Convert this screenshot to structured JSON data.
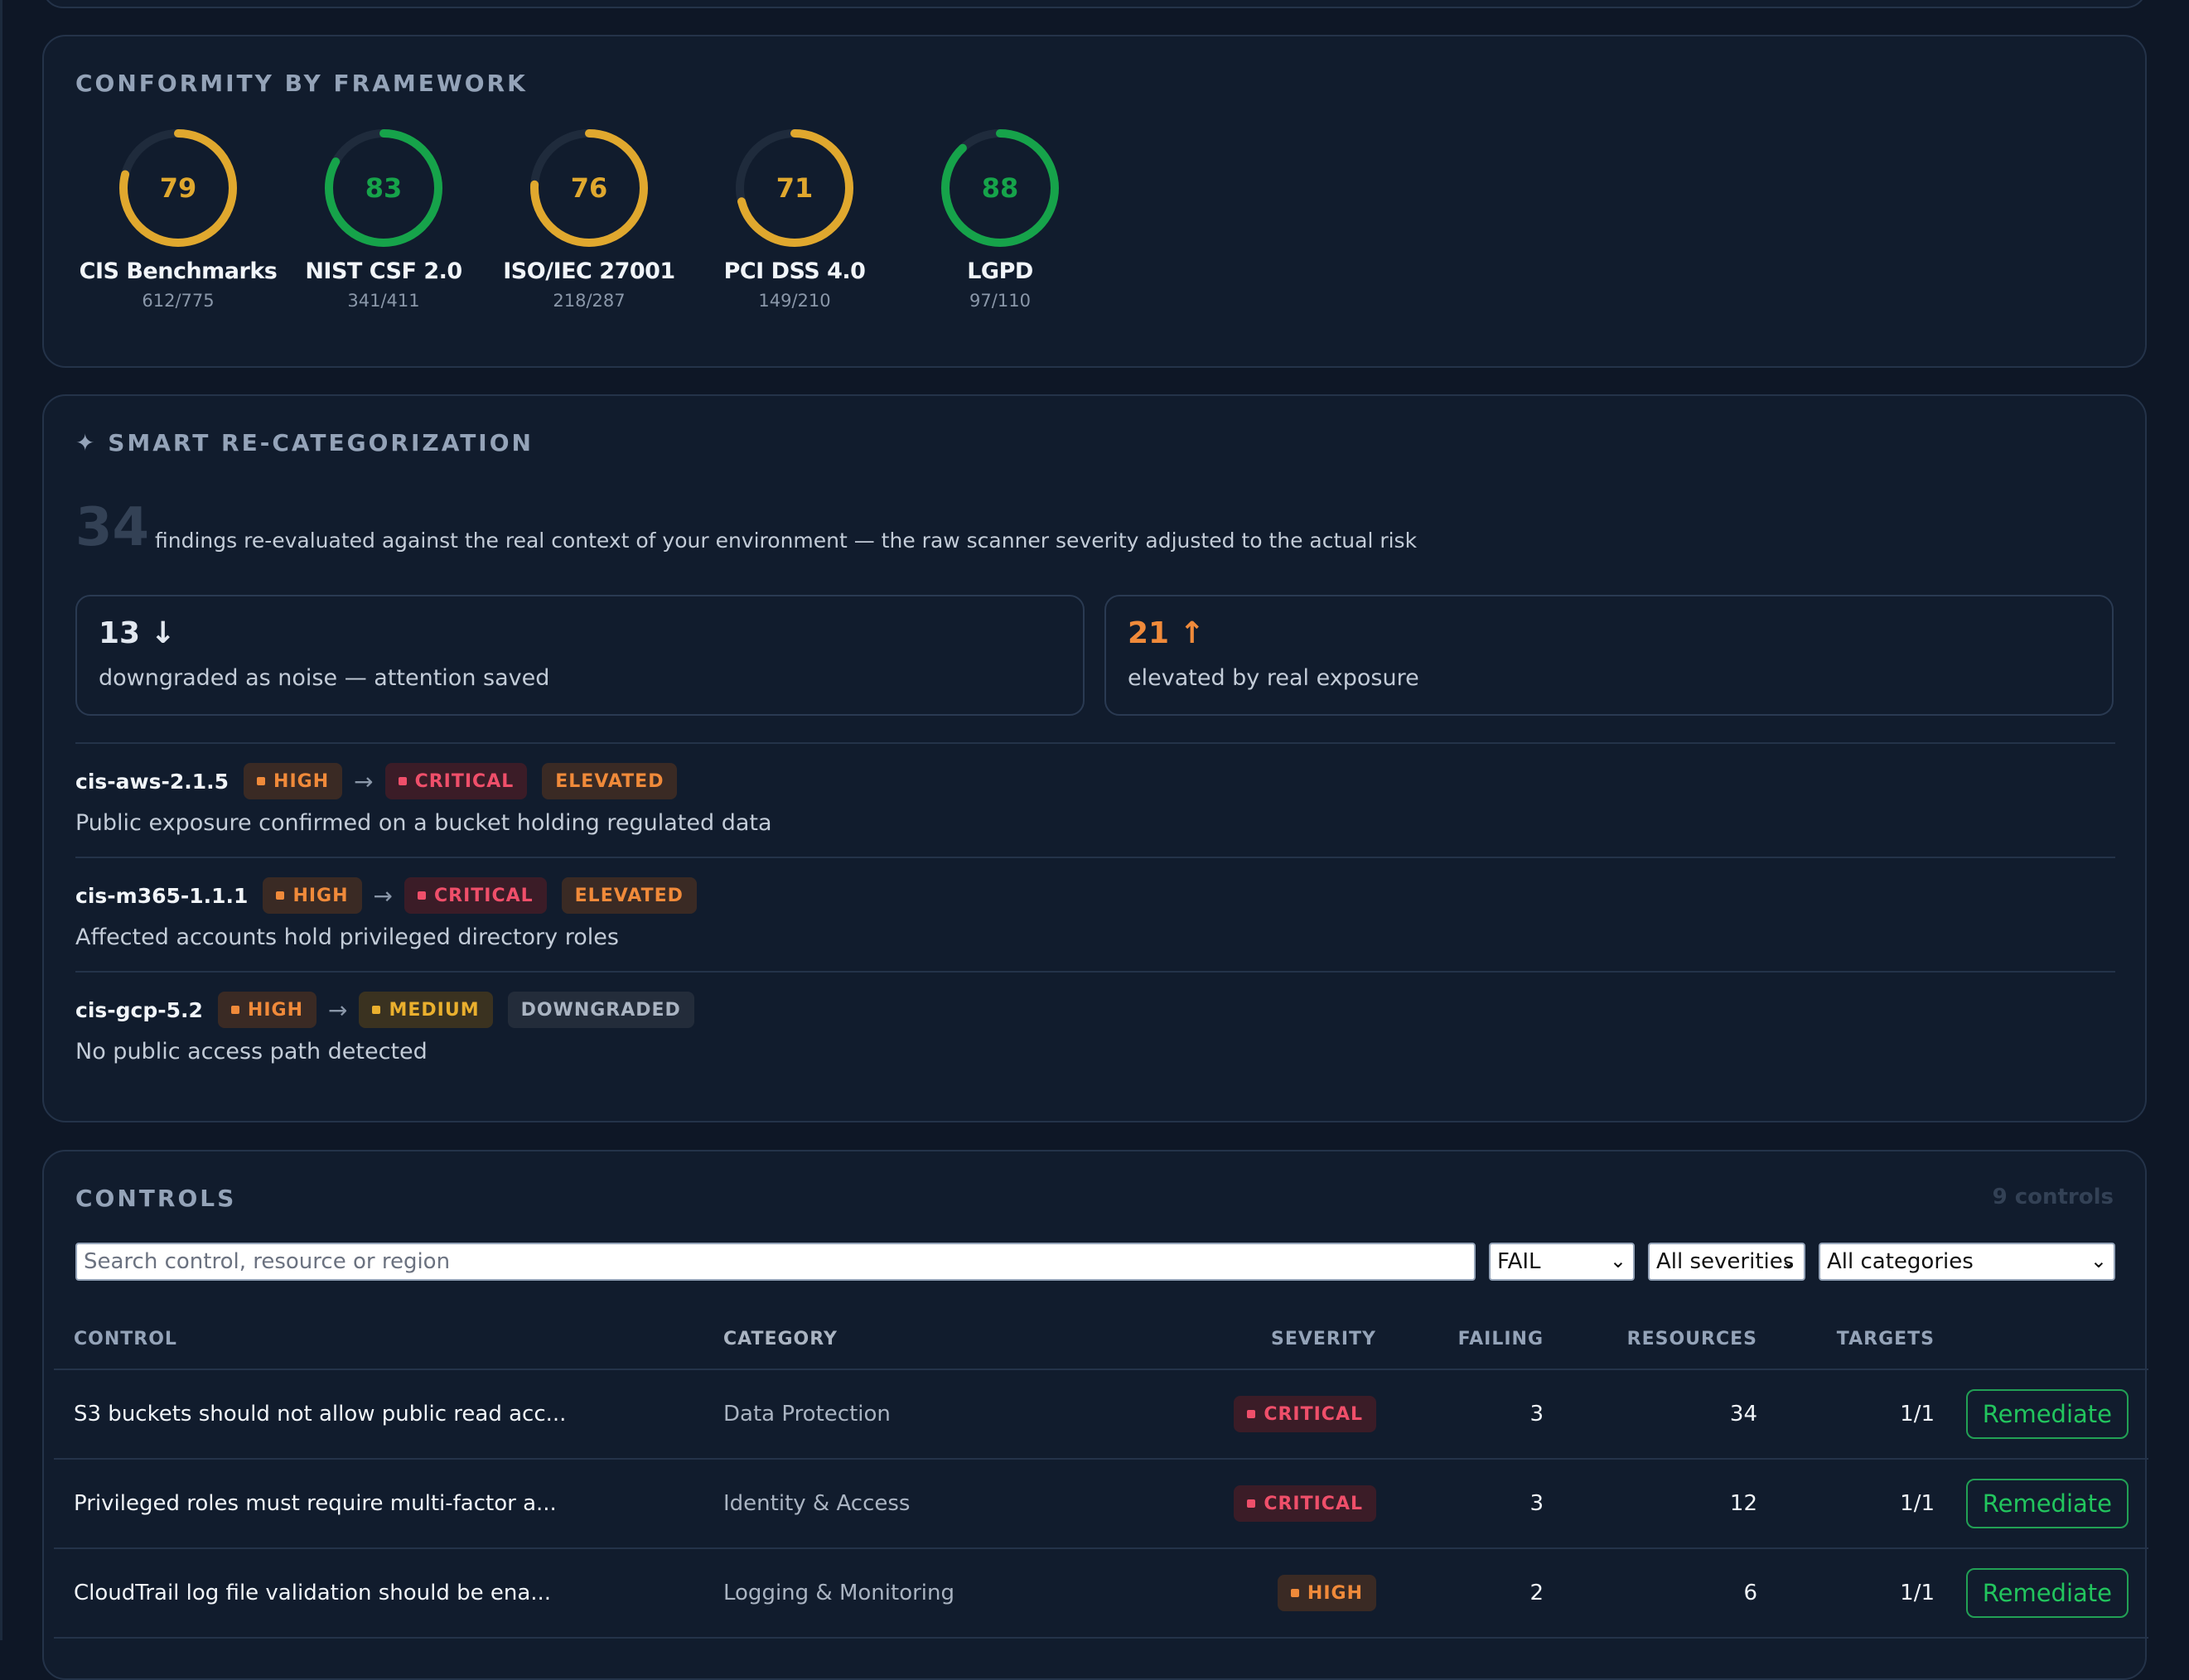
{
  "colors": {
    "pass": "#16a34a",
    "warn": "#e0a82e",
    "track": "#1f2b3c"
  },
  "conformity": {
    "title": "CONFORMITY BY FRAMEWORK",
    "frameworks": [
      {
        "name": "CIS Benchmarks",
        "score": "79",
        "fraction": "612/775",
        "status": "warn"
      },
      {
        "name": "NIST CSF 2.0",
        "score": "83",
        "fraction": "341/411",
        "status": "pass"
      },
      {
        "name": "ISO/IEC 27001",
        "score": "76",
        "fraction": "218/287",
        "status": "warn"
      },
      {
        "name": "PCI DSS 4.0",
        "score": "71",
        "fraction": "149/210",
        "status": "warn"
      },
      {
        "name": "LGPD",
        "score": "88",
        "fraction": "97/110",
        "status": "pass"
      }
    ]
  },
  "smart": {
    "title": "✦ SMART RE-CATEGORIZATION",
    "total": "34",
    "description": "findings re-evaluated against the real context of your environment — the raw scanner severity adjusted to the actual risk",
    "downgraded": {
      "value": "13 ↓",
      "label": "downgraded as noise — attention saved"
    },
    "elevated": {
      "value": "21 ↑",
      "label": "elevated by real exposure"
    },
    "arrow": "→",
    "items": [
      {
        "id": "cis-aws-2.1.5",
        "from": "HIGH",
        "to": "CRITICAL",
        "tag": "ELEVATED",
        "reason": "Public exposure confirmed on a bucket holding regulated data"
      },
      {
        "id": "cis-m365-1.1.1",
        "from": "HIGH",
        "to": "CRITICAL",
        "tag": "ELEVATED",
        "reason": "Affected accounts hold privileged directory roles"
      },
      {
        "id": "cis-gcp-5.2",
        "from": "HIGH",
        "to": "MEDIUM",
        "tag": "DOWNGRADED",
        "reason": "No public access path detected"
      }
    ]
  },
  "controls": {
    "title": "CONTROLS",
    "count": "9 controls",
    "search_placeholder": "Search control, resource or region",
    "filters": {
      "status": "FAIL",
      "severity": "All severities",
      "category": "All categories"
    },
    "columns": {
      "control": "CONTROL",
      "category": "CATEGORY",
      "severity": "SEVERITY",
      "failing": "FAILING",
      "resources": "RESOURCES",
      "targets": "TARGETS"
    },
    "action_label": "Remediate",
    "rows": [
      {
        "control": "S3 buckets should not allow public read acc...",
        "category": "Data Protection",
        "severity": "CRITICAL",
        "failing": "3",
        "resources": "34",
        "targets": "1/1"
      },
      {
        "control": "Privileged roles must require multi-factor a...",
        "category": "Identity & Access",
        "severity": "CRITICAL",
        "failing": "3",
        "resources": "12",
        "targets": "1/1"
      },
      {
        "control": "CloudTrail log file validation should be ena...",
        "category": "Logging & Monitoring",
        "severity": "HIGH",
        "failing": "2",
        "resources": "6",
        "targets": "1/1"
      }
    ]
  }
}
